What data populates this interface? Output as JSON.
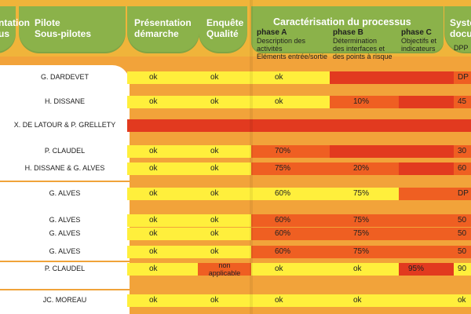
{
  "header": {
    "col1_line1": "ntation",
    "col1_line2": "us",
    "pilote_line1": "Pilote",
    "pilote_line2": "Sous-pilotes",
    "presentation_line1": "Présentation",
    "presentation_line2": "démarche",
    "enquete_line1": "Enquête",
    "enquete_line2": "Qualité",
    "caracterisation": "Caractérisation du processus",
    "phase_a_title": "phase A",
    "phase_a_line1": "Description des",
    "phase_a_line2": "activités",
    "phase_a_line3": "Eléments entrée/sortie",
    "phase_b_title": "phase B",
    "phase_b_line1": "Détermination",
    "phase_b_line2": "des interfaces et",
    "phase_b_line3": "des points à risque",
    "phase_c_title": "phase C",
    "phase_c_line1": "Objectifs et",
    "phase_c_line2": "indicateurs",
    "syst_line1": "Syste",
    "syst_line2": "docu",
    "syst_sub": "DPP"
  },
  "rows": [
    {
      "name": "G. DARDEVET",
      "pres": "ok",
      "enq": "ok",
      "a": "ok",
      "b": "",
      "c": "",
      "d": "DP"
    },
    {
      "name": "H. DISSANE",
      "pres": "ok",
      "enq": "ok",
      "a": "ok",
      "b": "10%",
      "c": "",
      "d": "45"
    },
    {
      "name": "X. DE LATOUR & P. GRELLETY",
      "pres": "",
      "enq": "",
      "a": "",
      "b": "",
      "c": "",
      "d": ""
    },
    {
      "name": "P. CLAUDEL",
      "pres": "ok",
      "enq": "ok",
      "a": "70%",
      "b": "",
      "c": "",
      "d": "30"
    },
    {
      "name": "H. DISSANE & G. ALVES",
      "pres": "ok",
      "enq": "ok",
      "a": "75%",
      "b": "20%",
      "c": "",
      "d": "60"
    },
    {
      "name": "G. ALVES",
      "pres": "ok",
      "enq": "ok",
      "a": "60%",
      "b": "75%",
      "c": "",
      "d": "DP"
    },
    {
      "name": "G. ALVES",
      "pres": "ok",
      "enq": "ok",
      "a": "60%",
      "b": "75%",
      "c": "",
      "d": "50"
    },
    {
      "name": "G. ALVES",
      "pres": "ok",
      "enq": "ok",
      "a": "60%",
      "b": "75%",
      "c": "",
      "d": "50"
    },
    {
      "name": "G. ALVES",
      "pres": "ok",
      "enq": "ok",
      "a": "60%",
      "b": "75%",
      "c": "",
      "d": "50"
    },
    {
      "name": "P. CLAUDEL",
      "pres": "ok",
      "enq_line1": "non",
      "enq_line2": "applicable",
      "a": "ok",
      "b": "ok",
      "c": "95%",
      "d": "90"
    },
    {
      "name": "JC. MOREAU",
      "pres": "ok",
      "enq": "ok",
      "a": "ok",
      "b": "ok",
      "c": "",
      "d": "ok"
    }
  ],
  "colors": {
    "orange": "#f0a33a",
    "green": "#8bb24a",
    "yellow": "#ffef3c",
    "red": "#e23a1f",
    "red_orange": "#ef5f22"
  }
}
